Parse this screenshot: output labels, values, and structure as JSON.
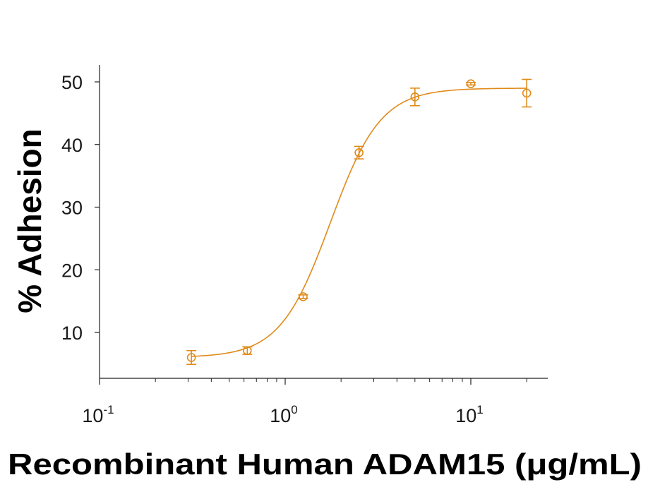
{
  "chart_data": {
    "type": "scatter",
    "xlabel": "Recombinant Human ADAM15 (μg/mL)",
    "ylabel": "% Adhesion",
    "x_scale": "log",
    "xlim": [
      0.1,
      25
    ],
    "ylim": [
      2,
      52
    ],
    "x_ticks": [
      {
        "value": 0.1,
        "base": "10",
        "exp": "-1"
      },
      {
        "value": 1,
        "base": "10",
        "exp": "0"
      },
      {
        "value": 10,
        "base": "10",
        "exp": "1"
      }
    ],
    "y_ticks": [
      10,
      20,
      30,
      40,
      50
    ],
    "grid": false,
    "color": "#e08a1a",
    "series": [
      {
        "points": [
          {
            "x": 0.3125,
            "y": 6.0,
            "err": 1.1
          },
          {
            "x": 0.625,
            "y": 7.1,
            "err": 0.6
          },
          {
            "x": 1.25,
            "y": 15.7,
            "err": 0.3
          },
          {
            "x": 2.5,
            "y": 38.7,
            "err": 1.0
          },
          {
            "x": 5.0,
            "y": 47.6,
            "err": 1.4
          },
          {
            "x": 10.0,
            "y": 49.7,
            "err": 0.2
          },
          {
            "x": 20.0,
            "y": 48.2,
            "err": 2.2
          }
        ],
        "fit": {
          "bottom": 6.0,
          "top": 49.0,
          "ec50": 1.75,
          "hill": 3.2
        }
      }
    ]
  }
}
